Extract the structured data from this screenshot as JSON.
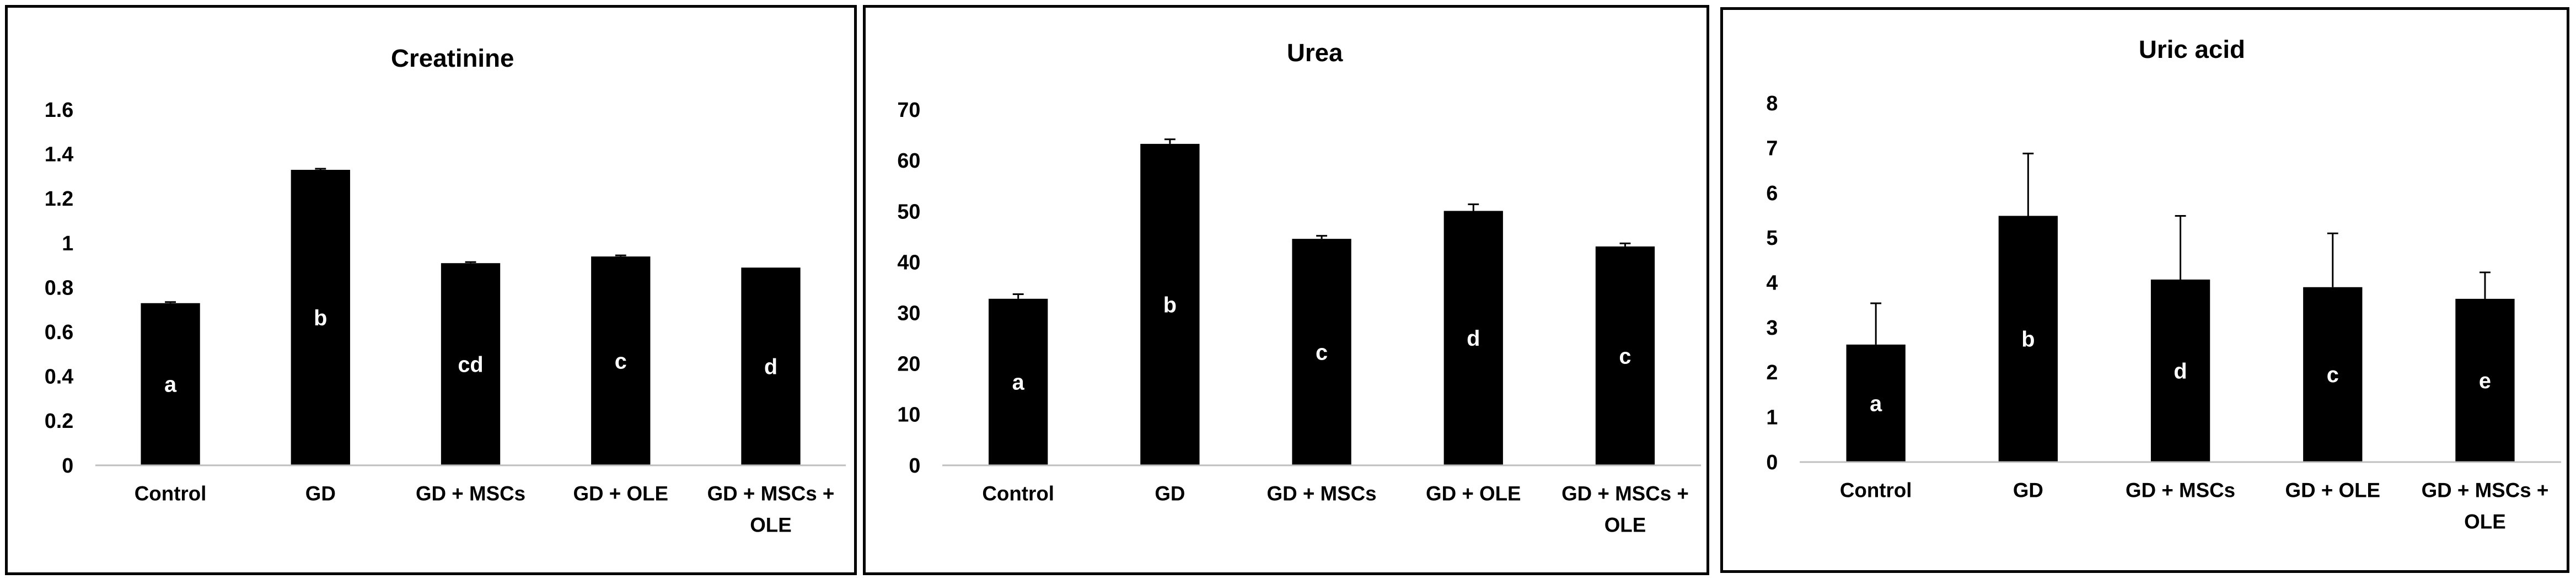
{
  "chart_data": [
    {
      "type": "bar",
      "title": "Creatinine",
      "categories": [
        [
          "Control"
        ],
        [
          "GD"
        ],
        [
          "GD + MSCs"
        ],
        [
          "GD + OLE"
        ],
        [
          "GD + MSCs +",
          "OLE"
        ]
      ],
      "values": [
        0.73,
        1.33,
        0.91,
        0.94,
        0.89
      ],
      "errors": [
        0.005,
        0.005,
        0.005,
        0.005,
        0.0
      ],
      "bar_labels": [
        "a",
        "b",
        "cd",
        "c",
        "d"
      ],
      "yticks": [
        "0",
        "0.2",
        "0.4",
        "0.6",
        "0.8",
        "1",
        "1.2",
        "1.4",
        "1.6"
      ],
      "ylim": [
        0,
        1.6
      ],
      "xlabel": "",
      "ylabel": "",
      "grid": false,
      "bar_color": "#000000"
    },
    {
      "type": "bar",
      "title": "Urea",
      "categories": [
        [
          "Control"
        ],
        [
          "GD"
        ],
        [
          "GD + MSCs"
        ],
        [
          "GD + OLE"
        ],
        [
          "GD + MSCs +",
          "OLE"
        ]
      ],
      "values": [
        32.8,
        63.3,
        44.6,
        50.1,
        43.1
      ],
      "errors": [
        0.9,
        0.9,
        0.6,
        1.3,
        0.6
      ],
      "bar_labels": [
        "a",
        "b",
        "c",
        "d",
        "c"
      ],
      "yticks": [
        "0",
        "10",
        "20",
        "30",
        "40",
        "50",
        "60",
        "70"
      ],
      "ylim": [
        0,
        70
      ],
      "xlabel": "",
      "ylabel": "",
      "grid": false,
      "bar_color": "#000000"
    },
    {
      "type": "bar",
      "title": "Uric acid",
      "categories": [
        [
          "Control"
        ],
        [
          "GD"
        ],
        [
          "GD + MSCs"
        ],
        [
          "GD + OLE"
        ],
        [
          "GD + MSCs +",
          "OLE"
        ]
      ],
      "values": [
        2.62,
        5.49,
        4.07,
        3.9,
        3.64
      ],
      "errors": [
        0.92,
        1.39,
        1.42,
        1.2,
        0.59
      ],
      "bar_labels": [
        "a",
        "b",
        "d",
        "c",
        "e"
      ],
      "yticks": [
        "0",
        "1",
        "2",
        "3",
        "4",
        "5",
        "6",
        "7",
        "8"
      ],
      "ylim": [
        0,
        8
      ],
      "xlabel": "",
      "ylabel": "",
      "grid": false,
      "bar_color": "#000000"
    }
  ]
}
